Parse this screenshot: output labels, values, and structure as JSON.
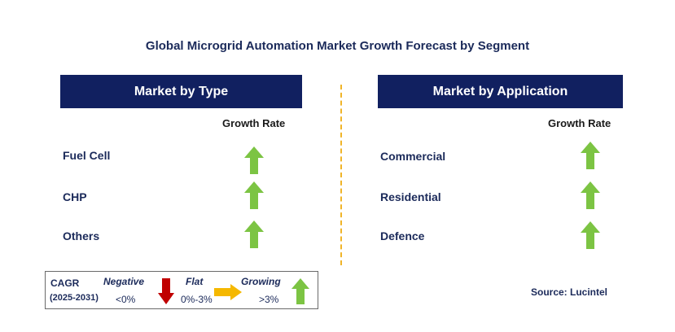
{
  "title": "Global Microgrid Automation Market Growth Forecast by Segment",
  "left_panel": {
    "header": "Market by Type",
    "column_header": "Growth Rate",
    "rows": [
      {
        "label": "Fuel Cell",
        "trend": "growing"
      },
      {
        "label": "CHP",
        "trend": "growing"
      },
      {
        "label": "Others",
        "trend": "growing"
      }
    ]
  },
  "right_panel": {
    "header": "Market by Application",
    "column_header": "Growth Rate",
    "rows": [
      {
        "label": "Commercial",
        "trend": "growing"
      },
      {
        "label": "Residential",
        "trend": "growing"
      },
      {
        "label": "Defence",
        "trend": "growing"
      }
    ]
  },
  "legend": {
    "cagr_label": "CAGR",
    "period": "(2025-2031)",
    "negative_label": "Negative",
    "negative_range": "<0%",
    "flat_label": "Flat",
    "flat_range": "0%-3%",
    "growing_label": "Growing",
    "growing_range": ">3%"
  },
  "source": "Source: Lucintel",
  "colors": {
    "header_bg": "#112060",
    "growing": "#7cc443",
    "negative": "#c00000",
    "flat": "#f5b800",
    "divider": "#f0b429"
  },
  "icons": {
    "growing": "up-arrow-icon",
    "negative": "down-arrow-icon",
    "flat": "right-arrow-icon"
  }
}
